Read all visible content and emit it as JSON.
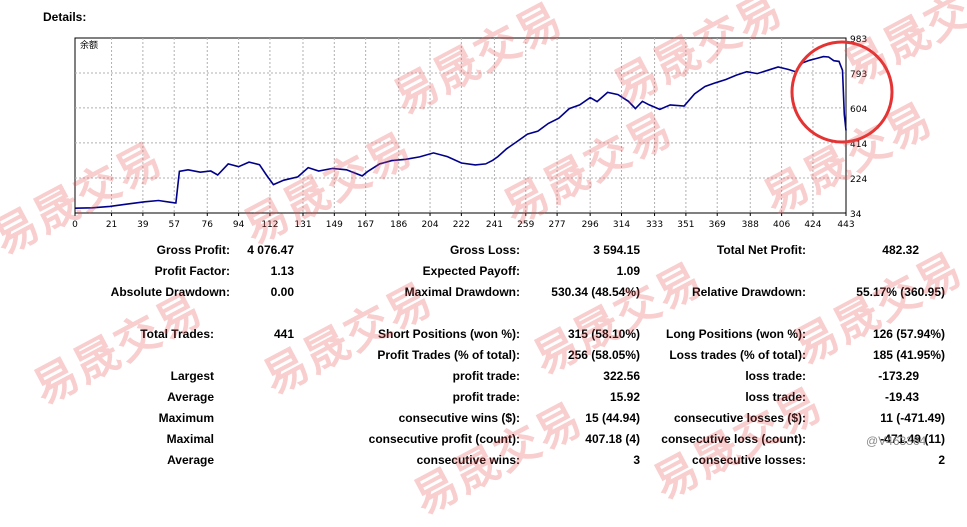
{
  "details_title": "Details:",
  "chart": {
    "corner_label": "余额",
    "y_ticks": [
      "983",
      "793",
      "604",
      "414",
      "224",
      "34"
    ],
    "x_ticks": [
      "0",
      "21",
      "39",
      "57",
      "76",
      "94",
      "112",
      "131",
      "149",
      "167",
      "186",
      "204",
      "222",
      "241",
      "259",
      "277",
      "296",
      "314",
      "333",
      "351",
      "369",
      "388",
      "406",
      "424",
      "443"
    ],
    "line_color": "#00008b",
    "highlight_circle_color": "#e53333"
  },
  "chart_data": {
    "type": "line",
    "title": "",
    "xlabel": "",
    "ylabel": "余额",
    "ylim": [
      34,
      983
    ],
    "xlim": [
      0,
      443
    ],
    "series": [
      {
        "values": [
          [
            0,
            60
          ],
          [
            10,
            62
          ],
          [
            20,
            70
          ],
          [
            30,
            82
          ],
          [
            40,
            95
          ],
          [
            48,
            102
          ],
          [
            55,
            92
          ],
          [
            58,
            88
          ],
          [
            60,
            260
          ],
          [
            65,
            268
          ],
          [
            72,
            255
          ],
          [
            78,
            262
          ],
          [
            82,
            240
          ],
          [
            88,
            300
          ],
          [
            94,
            285
          ],
          [
            100,
            310
          ],
          [
            106,
            296
          ],
          [
            110,
            240
          ],
          [
            114,
            188
          ],
          [
            120,
            212
          ],
          [
            128,
            230
          ],
          [
            134,
            280
          ],
          [
            140,
            262
          ],
          [
            148,
            276
          ],
          [
            156,
            268
          ],
          [
            165,
            235
          ],
          [
            168,
            258
          ],
          [
            175,
            300
          ],
          [
            182,
            318
          ],
          [
            190,
            325
          ],
          [
            198,
            338
          ],
          [
            206,
            360
          ],
          [
            214,
            340
          ],
          [
            222,
            305
          ],
          [
            230,
            295
          ],
          [
            236,
            300
          ],
          [
            240,
            320
          ],
          [
            243,
            340
          ],
          [
            248,
            382
          ],
          [
            254,
            422
          ],
          [
            260,
            462
          ],
          [
            266,
            478
          ],
          [
            272,
            520
          ],
          [
            278,
            548
          ],
          [
            284,
            600
          ],
          [
            290,
            620
          ],
          [
            296,
            660
          ],
          [
            300,
            638
          ],
          [
            306,
            688
          ],
          [
            312,
            676
          ],
          [
            318,
            640
          ],
          [
            322,
            600
          ],
          [
            326,
            640
          ],
          [
            330,
            620
          ],
          [
            336,
            596
          ],
          [
            342,
            620
          ],
          [
            350,
            614
          ],
          [
            356,
            680
          ],
          [
            362,
            720
          ],
          [
            368,
            740
          ],
          [
            374,
            758
          ],
          [
            380,
            782
          ],
          [
            386,
            800
          ],
          [
            392,
            790
          ],
          [
            398,
            808
          ],
          [
            404,
            826
          ],
          [
            410,
            812
          ],
          [
            414,
            800
          ],
          [
            418,
            848
          ],
          [
            422,
            862
          ],
          [
            426,
            872
          ],
          [
            430,
            882
          ],
          [
            433,
            880
          ],
          [
            436,
            860
          ],
          [
            439,
            856
          ],
          [
            441,
            808
          ],
          [
            442,
            568
          ],
          [
            443,
            482
          ]
        ]
      }
    ],
    "x_ticks": [
      0,
      21,
      39,
      57,
      76,
      94,
      112,
      131,
      149,
      167,
      186,
      204,
      222,
      241,
      259,
      277,
      296,
      314,
      333,
      351,
      369,
      388,
      406,
      424,
      443
    ],
    "y_ticks": [
      34,
      224,
      414,
      604,
      793,
      983
    ],
    "grid": true,
    "legend": "none"
  },
  "stats": {
    "gross_profit": {
      "label": "Gross Profit:",
      "value": "4 076.47"
    },
    "gross_loss": {
      "label": "Gross Loss:",
      "value": "3 594.15"
    },
    "total_net_profit": {
      "label": "Total Net Profit:",
      "value": "482.32"
    },
    "profit_factor": {
      "label": "Profit Factor:",
      "value": "1.13"
    },
    "expected_payoff": {
      "label": "Expected Payoff:",
      "value": "1.09"
    },
    "absolute_drawdown": {
      "label": "Absolute Drawdown:",
      "value": "0.00"
    },
    "maximal_drawdown": {
      "label": "Maximal Drawdown:",
      "value": "530.34 (48.54%)"
    },
    "relative_drawdown": {
      "label": "Relative Drawdown:",
      "value": "55.17% (360.95)"
    },
    "total_trades": {
      "label": "Total Trades:",
      "value": "441"
    },
    "short_positions": {
      "label": "Short Positions (won %):",
      "value": "315 (58.10%)"
    },
    "long_positions": {
      "label": "Long Positions (won %):",
      "value": "126 (57.94%)"
    },
    "profit_trades": {
      "label": "Profit Trades (% of total):",
      "value": "256 (58.05%)"
    },
    "loss_trades": {
      "label": "Loss trades (% of total):",
      "value": "185 (41.95%)"
    },
    "largest": {
      "label": "Largest",
      "mid": "profit trade:",
      "mid_value": "322.56",
      "right": "loss trade:",
      "right_value": "-173.29"
    },
    "average": {
      "label": "Average",
      "mid": "profit trade:",
      "mid_value": "15.92",
      "right": "loss trade:",
      "right_value": "-19.43"
    },
    "maximum": {
      "label": "Maximum",
      "mid": "consecutive wins ($):",
      "mid_value": "15 (44.94)",
      "right": "consecutive losses ($):",
      "right_value": "11 (-471.49)"
    },
    "maximal": {
      "label": "Maximal",
      "mid": "consecutive profit (count):",
      "mid_value": "407.18 (4)",
      "right": "consecutive loss (count):",
      "right_value": "-471.49 (11)"
    },
    "average2": {
      "label": "Average",
      "mid": "consecutive wins:",
      "mid_value": "3",
      "right": "consecutive losses:",
      "right_value": "2"
    }
  },
  "watermark_text": "易晟交易",
  "weibo_text": "@V463364"
}
